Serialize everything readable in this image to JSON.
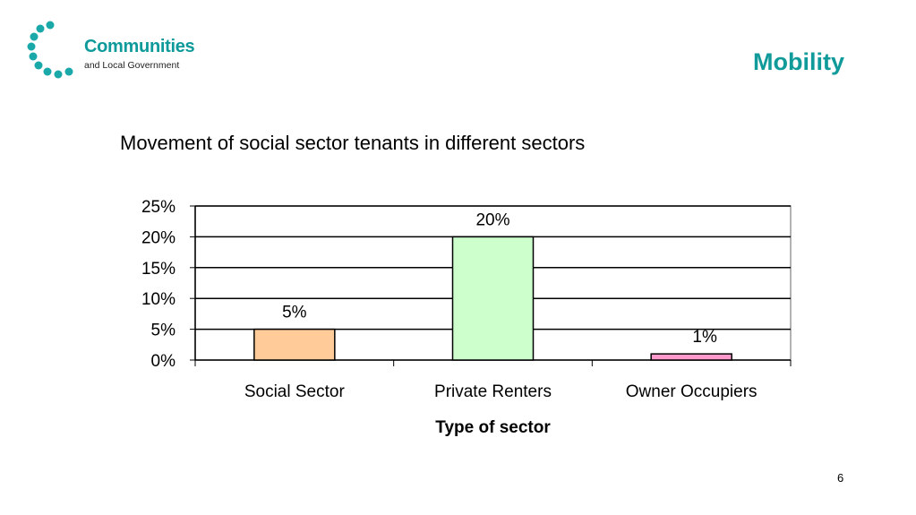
{
  "header": {
    "logo_name": "Communities",
    "logo_sub": "and Local Government",
    "slide_title": "Mobility"
  },
  "chart_data": {
    "type": "bar",
    "title": "Movement of social sector tenants in different sectors",
    "categories": [
      "Social Sector",
      "Private Renters",
      "Owner Occupiers"
    ],
    "values": [
      5,
      20,
      1
    ],
    "value_labels": [
      "5%",
      "20%",
      "1%"
    ],
    "colors": [
      "#ffcc99",
      "#ccffcc",
      "#ff99cc"
    ],
    "xlabel": "Type of sector",
    "ylabel": "",
    "ylim": [
      0,
      25
    ],
    "yticks": [
      "0%",
      "5%",
      "10%",
      "15%",
      "20%",
      "25%"
    ],
    "grid": true
  },
  "footer": {
    "page_number": "6"
  }
}
